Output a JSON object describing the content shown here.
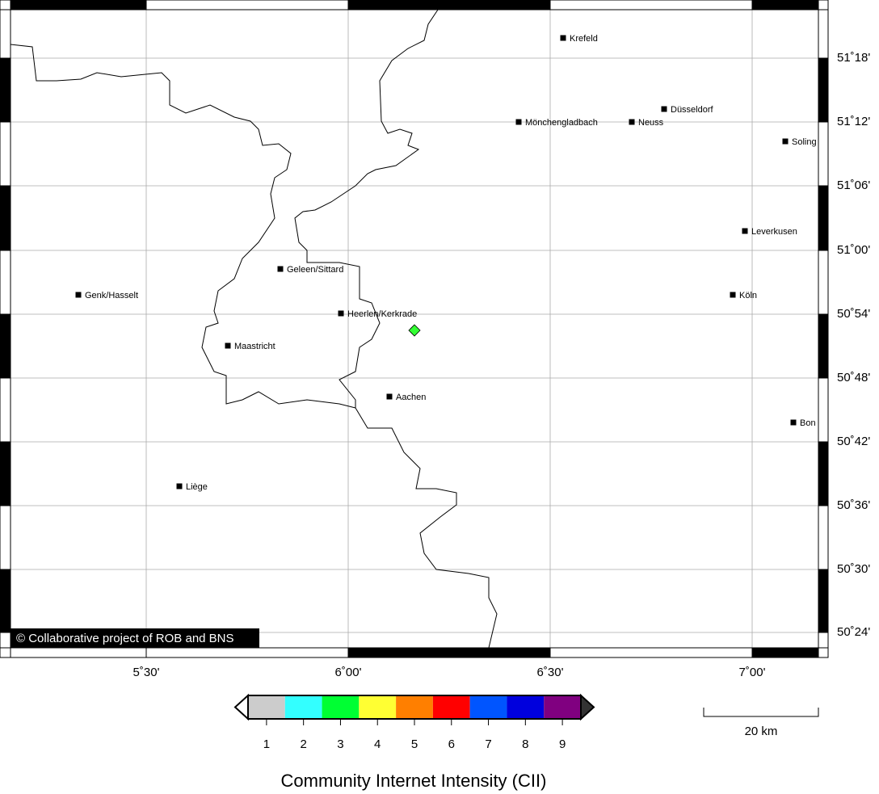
{
  "map": {
    "lon_labels": [
      "5˚30'",
      "6˚00'",
      "6˚30'",
      "7˚00'"
    ],
    "lat_labels": [
      "51˚18'",
      "51˚12'",
      "51˚06'",
      "51˚00'",
      "50˚54'",
      "50˚48'",
      "50˚42'",
      "50˚36'",
      "50˚30'",
      "50˚24'"
    ],
    "cities": [
      "Krefeld",
      "Düsseldorf",
      "Mönchengladbach",
      "Neuss",
      "Soling",
      "Leverkusen",
      "Geleen/Sittard",
      "Genk/Hasselt",
      "Köln",
      "Heerlen/Kerkrade",
      "Maastricht",
      "Aachen",
      "Bon",
      "Liège"
    ],
    "credit": "© Collaborative project of ROB and BNS",
    "scale_label": "20 km"
  },
  "colorbar": {
    "title": "Community Internet Intensity (CII)",
    "levels": [
      1,
      2,
      3,
      4,
      5,
      6,
      7,
      8,
      9
    ],
    "colors": [
      "#cccccc",
      "#33ffff",
      "#00ff33",
      "#ffff33",
      "#ff7f00",
      "#ff0000",
      "#0055ff",
      "#0000dd",
      "#800080"
    ]
  }
}
